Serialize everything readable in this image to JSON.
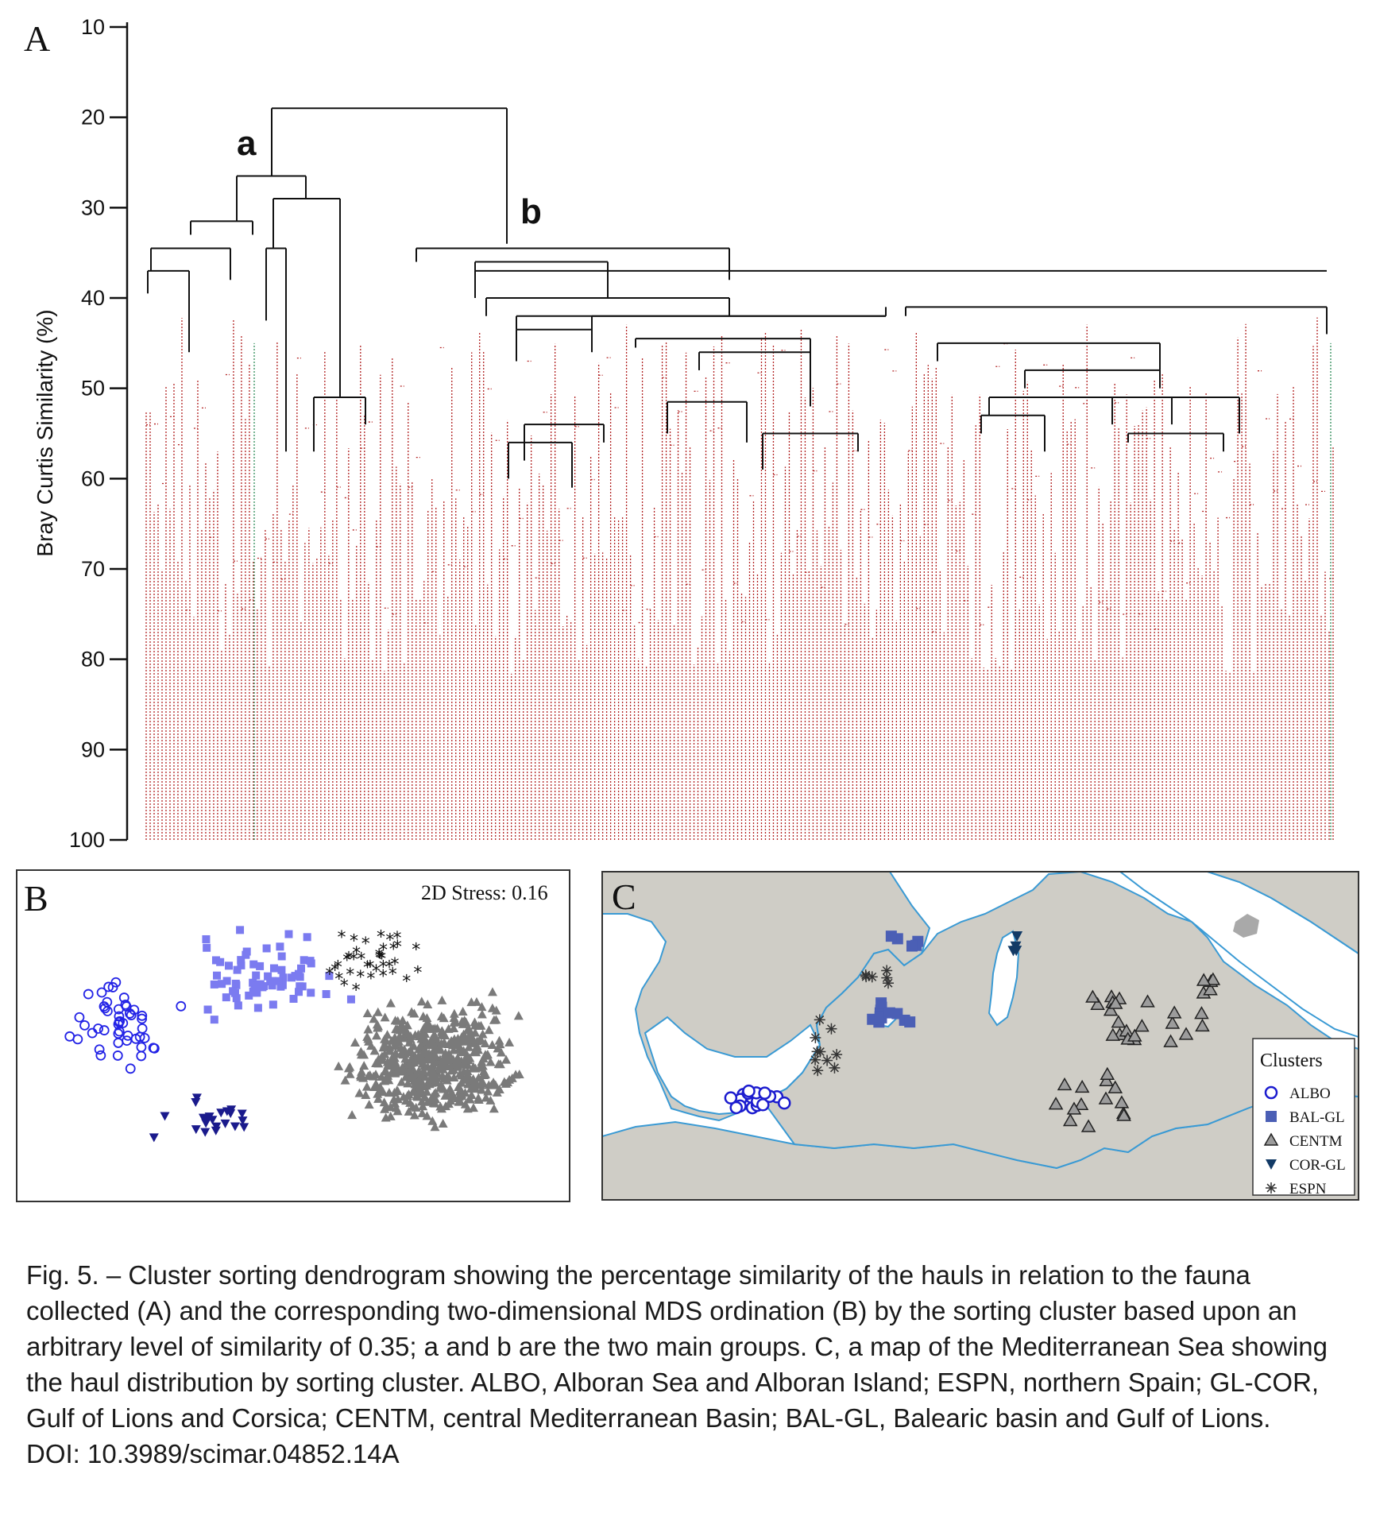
{
  "panel_labels": {
    "a": "A",
    "b": "B",
    "c": "C"
  },
  "dendrogram": {
    "ylabel": "Bray Curtis Similarity (%)",
    "yticks": [
      "10",
      "20",
      "30",
      "40",
      "50",
      "60",
      "70",
      "80",
      "90",
      "100"
    ],
    "ylim": [
      10,
      100
    ],
    "group_labels": {
      "a": "a",
      "b": "b"
    },
    "colors": {
      "axis": "#111111",
      "branch": "#111111",
      "subcluster": "#b22222",
      "minor": "#2e8b57"
    }
  },
  "mds": {
    "stress_label": "2D Stress: 0.16",
    "colors": {
      "ALBO": "#2323e6",
      "BAL-GL": "#7b7bf0",
      "CENTM": "#7a7a7a",
      "COR-GL": "#1a1a8c",
      "ESPN": "#111111"
    }
  },
  "map": {
    "legend_title": "Clusters",
    "legend": [
      {
        "label": "ALBO",
        "icon": "open-circle-icon"
      },
      {
        "label": "BAL-GL",
        "icon": "filled-square-icon"
      },
      {
        "label": "CENTM",
        "icon": "grey-triangle-icon"
      },
      {
        "label": "COR-GL",
        "icon": "inverted-triangle-icon"
      },
      {
        "label": "ESPN",
        "icon": "asterisk-icon"
      }
    ],
    "colors": {
      "sea": "#ffffff",
      "land": "#cfcdc6",
      "coast": "#3a9ad4",
      "ALBO": "#1c1ccf",
      "BAL-GL": "#4b5fb5",
      "CENTM": "#9c9c9c",
      "COR-GL": "#123a66",
      "ESPN": "#333333"
    }
  },
  "caption": {
    "text": "Fig. 5. – Cluster sorting dendrogram showing the percentage similarity of the hauls in relation to the fauna collected (A) and the corresponding two-dimensional MDS ordination (B) by the sorting cluster based upon an arbitrary level of similarity of 0.35; a and b are the two main groups. C, a map of the Mediterranean Sea showing the haul distribution by sorting cluster. ALBO, Alboran Sea and Alboran Island; ESPN, northern Spain; GL-COR, Gulf of Lions and Corsica; CENTM, central Mediterranean Basin; BAL-GL, Balearic basin and Gulf of Lions.",
    "doi": "DOI: 10.3989/scimar.04852.14A"
  }
}
